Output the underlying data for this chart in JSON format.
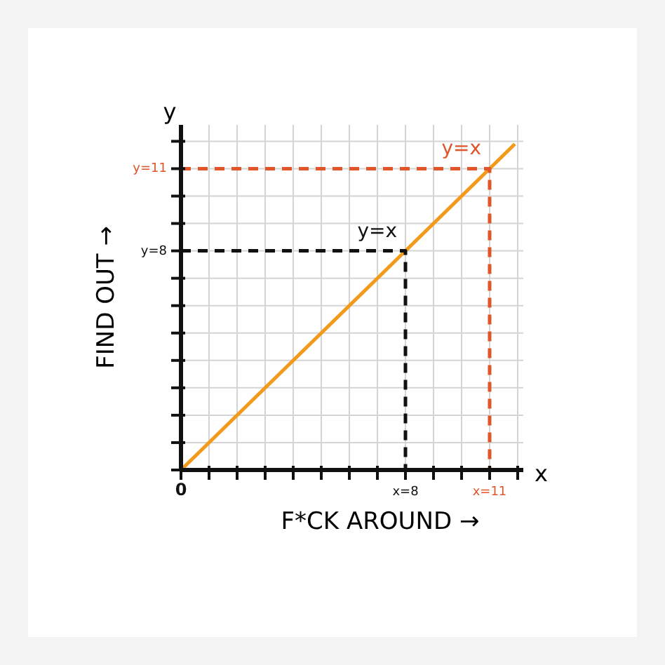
{
  "chart_data": {
    "type": "line",
    "xlabel": "F*CK AROUND →",
    "ylabel": "FIND OUT →",
    "xlim": [
      0,
      12.2
    ],
    "ylim": [
      0,
      12.6
    ],
    "xticks": [
      {
        "value": 0,
        "label": "0"
      },
      {
        "value": 1,
        "label": null
      },
      {
        "value": 2,
        "label": null
      },
      {
        "value": 3,
        "label": null
      },
      {
        "value": 4,
        "label": null
      },
      {
        "value": 5,
        "label": null
      },
      {
        "value": 6,
        "label": null
      },
      {
        "value": 7,
        "label": null
      },
      {
        "value": 8,
        "label": "x=8"
      },
      {
        "value": 9,
        "label": null
      },
      {
        "value": 10,
        "label": null
      },
      {
        "value": 11,
        "label": "x=11"
      },
      {
        "value": 12,
        "label": null
      }
    ],
    "yticks": [
      {
        "value": 0,
        "label": null
      },
      {
        "value": 1,
        "label": null
      },
      {
        "value": 2,
        "label": null
      },
      {
        "value": 3,
        "label": null
      },
      {
        "value": 4,
        "label": null
      },
      {
        "value": 5,
        "label": null
      },
      {
        "value": 6,
        "label": null
      },
      {
        "value": 7,
        "label": null
      },
      {
        "value": 8,
        "label": "y=8"
      },
      {
        "value": 9,
        "label": null
      },
      {
        "value": 10,
        "label": null
      },
      {
        "value": 11,
        "label": "y=11"
      },
      {
        "value": 12,
        "label": null
      }
    ],
    "grid": true,
    "series": [
      {
        "color": "#f29a1c",
        "x": [
          0,
          11.9
        ],
        "values": [
          0,
          11.9
        ],
        "line_style": "solid"
      },
      {
        "color": "#111111",
        "x": [
          0,
          8,
          8
        ],
        "values": [
          8,
          8,
          0
        ],
        "line_style": "dashed"
      },
      {
        "color": "#e0562a",
        "x": [
          0,
          11,
          11
        ],
        "values": [
          11,
          11,
          0
        ],
        "line_style": "dashed"
      }
    ],
    "annotations": [
      {
        "text": "y=x",
        "x": 8,
        "y": 8
      },
      {
        "text": "y=x",
        "x": 11,
        "y": 11
      },
      "x",
      "y"
    ]
  }
}
